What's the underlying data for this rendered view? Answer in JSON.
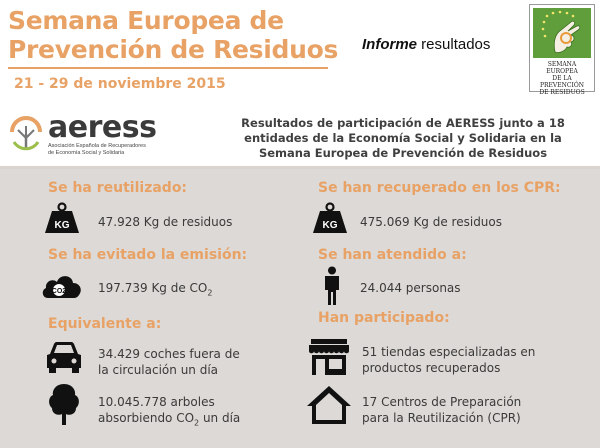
{
  "header": {
    "title_line1": "Semana Europea de",
    "title_line2": "Prevención de Residuos",
    "dates": "21 - 29 de noviembre 2015",
    "report_em": "Informe",
    "report_rest": " resultados",
    "logo_line1": "SEMANA EUROPEA",
    "logo_line2": "DE LA PREVENCIÓN",
    "logo_line3": "DE RESIDUOS"
  },
  "org": {
    "name": "aeress",
    "subtitle_line1": "Asociación Española de Recuperadores",
    "subtitle_line2": "de Economía Social y Solidaria",
    "intro_line1": "Resultados de participación de AERESS junto a 18",
    "intro_line2": "entidades de la Economía Social y Solidaria en la",
    "intro_line3": "Semana Europea de Prevención de Residuos"
  },
  "left": {
    "reused_heading": "Se ha reutilizado:",
    "reused_value": "47.928 Kg de residuos",
    "emission_heading": "Se ha evitado la emisión:",
    "emission_value": "197.739 Kg de CO",
    "emission_sub": "2",
    "equiv_heading": "Equivalente a:",
    "cars_line1": "34.429 coches fuera de",
    "cars_line2": "la circulación un día",
    "trees_line1": "10.045.778 arboles",
    "trees_line2_a": "absorbiendo CO",
    "trees_line2_sub": "2",
    "trees_line2_b": " un día",
    "kg_label": "KG",
    "co2_label": "CO2"
  },
  "right": {
    "recovered_heading": "Se han recuperado en los CPR:",
    "recovered_value": "475.069 Kg de residuos",
    "attended_heading": "Se han atendido a:",
    "attended_value": "24.044 personas",
    "participated_heading": "Han participado:",
    "shops_line1": "51 tiendas especializadas en",
    "shops_line2": "productos recuperados",
    "centers_line1": "17 Centros de Preparación",
    "centers_line2": "para la Reutilización (CPR)",
    "kg_label": "KG"
  },
  "colors": {
    "accent": "#e8a265",
    "panel": "#ddd9d6",
    "text": "#3a3a3a"
  }
}
